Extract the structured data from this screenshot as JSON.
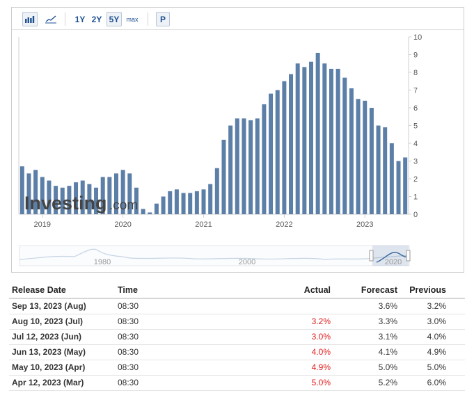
{
  "toolbar": {
    "buttons": [
      "bar-chart-icon",
      "line-chart-icon"
    ],
    "ranges": [
      "1Y",
      "2Y",
      "5Y",
      "max"
    ],
    "active_range": "5Y",
    "p_label": "P"
  },
  "watermark": {
    "brand": "Investing",
    "suffix": ".com"
  },
  "navigator": {
    "labels": [
      "1980",
      "2000",
      "2020"
    ]
  },
  "chart_data": {
    "type": "bar",
    "x_labels": [
      "2019",
      "2020",
      "2021",
      "2022",
      "2023"
    ],
    "yticks": [
      "0",
      "1",
      "2",
      "3",
      "4",
      "5",
      "6",
      "7",
      "8",
      "9",
      "10"
    ],
    "ylim": [
      0,
      10
    ],
    "bar_color": "#5c7fa8",
    "values": [
      2.7,
      2.3,
      2.5,
      2.1,
      1.9,
      1.6,
      1.5,
      1.6,
      1.8,
      1.9,
      1.7,
      1.5,
      2.1,
      2.1,
      2.3,
      2.5,
      2.3,
      1.5,
      0.3,
      0.1,
      0.6,
      1.0,
      1.3,
      1.4,
      1.2,
      1.2,
      1.3,
      1.4,
      1.7,
      2.6,
      4.2,
      5.0,
      5.4,
      5.4,
      5.3,
      5.4,
      6.2,
      6.8,
      7.0,
      7.5,
      7.9,
      8.5,
      8.3,
      8.6,
      9.1,
      8.5,
      8.2,
      8.2,
      7.7,
      7.1,
      6.5,
      6.4,
      6.0,
      5.0,
      4.9,
      4.0,
      3.0,
      3.2
    ],
    "grid": false
  },
  "table": {
    "headers": [
      "Release Date",
      "Time",
      "Actual",
      "Forecast",
      "Previous"
    ],
    "rows": [
      {
        "date": "Sep 13, 2023 (Aug)",
        "time": "08:30",
        "actual": "",
        "forecast": "3.6%",
        "previous": "3.2%"
      },
      {
        "date": "Aug 10, 2023 (Jul)",
        "time": "08:30",
        "actual": "3.2%",
        "forecast": "3.3%",
        "previous": "3.0%"
      },
      {
        "date": "Jul 12, 2023 (Jun)",
        "time": "08:30",
        "actual": "3.0%",
        "forecast": "3.1%",
        "previous": "4.0%"
      },
      {
        "date": "Jun 13, 2023 (May)",
        "time": "08:30",
        "actual": "4.0%",
        "forecast": "4.1%",
        "previous": "4.9%"
      },
      {
        "date": "May 10, 2023 (Apr)",
        "time": "08:30",
        "actual": "4.9%",
        "forecast": "5.0%",
        "previous": "5.0%"
      },
      {
        "date": "Apr 12, 2023 (Mar)",
        "time": "08:30",
        "actual": "5.0%",
        "forecast": "5.2%",
        "previous": "6.0%"
      }
    ],
    "actual_color": "#e01b1b"
  }
}
